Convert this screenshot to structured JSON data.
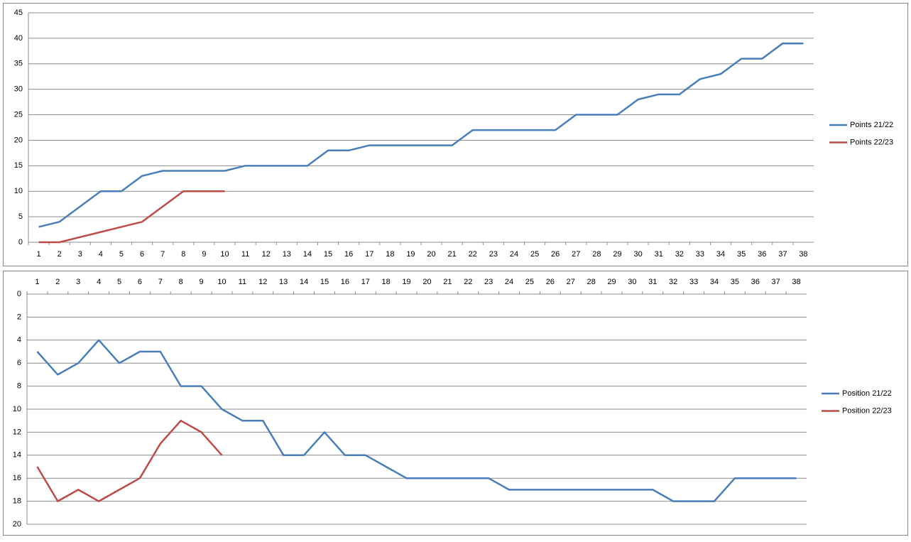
{
  "chart_data": [
    {
      "type": "line",
      "categories": [
        1,
        2,
        3,
        4,
        5,
        6,
        7,
        8,
        9,
        10,
        11,
        12,
        13,
        14,
        15,
        16,
        17,
        18,
        19,
        20,
        21,
        22,
        23,
        24,
        25,
        26,
        27,
        28,
        29,
        30,
        31,
        32,
        33,
        34,
        35,
        36,
        37,
        38
      ],
      "series": [
        {
          "name": "Points 21/22",
          "color": "#4a7ebb",
          "values": [
            3,
            4,
            7,
            10,
            10,
            13,
            14,
            14,
            14,
            14,
            15,
            15,
            15,
            15,
            18,
            18,
            19,
            19,
            19,
            19,
            19,
            22,
            22,
            22,
            22,
            22,
            25,
            25,
            25,
            28,
            29,
            29,
            32,
            33,
            36,
            36,
            39,
            39
          ]
        },
        {
          "name": "Points 22/23",
          "color": "#be4b48",
          "values": [
            0,
            0,
            1,
            2,
            3,
            4,
            7,
            10,
            10,
            10,
            null,
            null,
            null,
            null,
            null,
            null,
            null,
            null,
            null,
            null,
            null,
            null,
            null,
            null,
            null,
            null,
            null,
            null,
            null,
            null,
            null,
            null,
            null,
            null,
            null,
            null,
            null,
            null
          ]
        }
      ],
      "ylim": [
        0,
        45
      ],
      "yticks": [
        0,
        5,
        10,
        15,
        20,
        25,
        30,
        35,
        40,
        45
      ],
      "y_reversed": false,
      "x_axis_position": "bottom",
      "grid": true,
      "legend": "right"
    },
    {
      "type": "line",
      "categories": [
        1,
        2,
        3,
        4,
        5,
        6,
        7,
        8,
        9,
        10,
        11,
        12,
        13,
        14,
        15,
        16,
        17,
        18,
        19,
        20,
        21,
        22,
        23,
        24,
        25,
        26,
        27,
        28,
        29,
        30,
        31,
        32,
        33,
        34,
        35,
        36,
        37,
        38
      ],
      "series": [
        {
          "name": "Position 21/22",
          "color": "#4a7ebb",
          "values": [
            5,
            7,
            6,
            4,
            6,
            5,
            5,
            8,
            8,
            10,
            11,
            11,
            14,
            14,
            12,
            14,
            14,
            15,
            16,
            16,
            16,
            16,
            16,
            17,
            17,
            17,
            17,
            17,
            17,
            17,
            17,
            18,
            18,
            18,
            16,
            16,
            16,
            16
          ]
        },
        {
          "name": "Position 22/23",
          "color": "#be4b48",
          "values": [
            15,
            18,
            17,
            18,
            17,
            16,
            13,
            11,
            12,
            14,
            null,
            null,
            null,
            null,
            null,
            null,
            null,
            null,
            null,
            null,
            null,
            null,
            null,
            null,
            null,
            null,
            null,
            null,
            null,
            null,
            null,
            null,
            null,
            null,
            null,
            null,
            null,
            null
          ]
        }
      ],
      "ylim": [
        0,
        20
      ],
      "yticks": [
        0,
        2,
        4,
        6,
        8,
        10,
        12,
        14,
        16,
        18,
        20
      ],
      "y_reversed": true,
      "x_axis_position": "top",
      "grid": true,
      "legend": "right"
    }
  ]
}
